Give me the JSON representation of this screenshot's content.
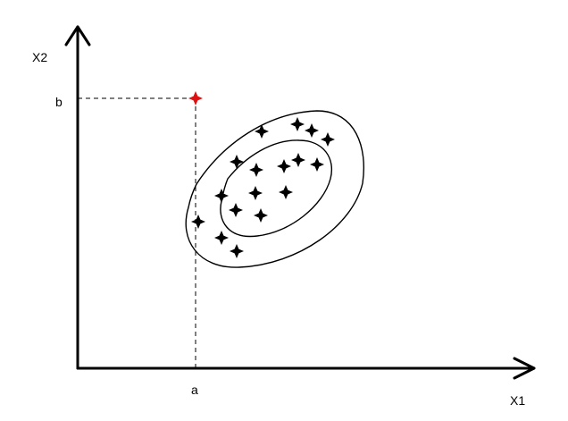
{
  "labels": {
    "x_axis": "X1",
    "y_axis": "X2",
    "point_x": "a",
    "point_y": "b"
  },
  "colors": {
    "axis": "#000000",
    "data_points": "#000000",
    "highlight_point": "#dd1111"
  },
  "marker_shape": "four-point-star",
  "contours": [
    "outer-ellipse",
    "inner-ellipse"
  ],
  "point_count": 21,
  "highlighted_point_count": 1
}
